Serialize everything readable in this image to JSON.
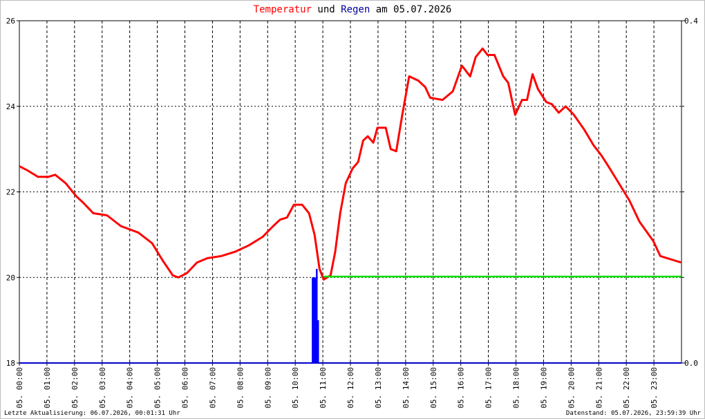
{
  "chart_data": {
    "type": "line",
    "title_connector": "und",
    "title_date": "am 05.07.2026",
    "xlim": [
      0,
      24
    ],
    "xticks": [
      {
        "value": 0,
        "label": "05. 00:00"
      },
      {
        "value": 1,
        "label": "05. 01:00"
      },
      {
        "value": 2,
        "label": "05. 02:00"
      },
      {
        "value": 3,
        "label": "05. 03:00"
      },
      {
        "value": 4,
        "label": "05. 04:00"
      },
      {
        "value": 5,
        "label": "05. 05:00"
      },
      {
        "value": 6,
        "label": "05. 06:00"
      },
      {
        "value": 7,
        "label": "05. 07:00"
      },
      {
        "value": 8,
        "label": "05. 08:00"
      },
      {
        "value": 9,
        "label": "05. 09:00"
      },
      {
        "value": 10,
        "label": "05. 10:00"
      },
      {
        "value": 11,
        "label": "05. 11:00"
      },
      {
        "value": 12,
        "label": "05. 12:00"
      },
      {
        "value": 13,
        "label": "05. 13:00"
      },
      {
        "value": 14,
        "label": "05. 14:00"
      },
      {
        "value": 15,
        "label": "05. 15:00"
      },
      {
        "value": 16,
        "label": "05. 16:00"
      },
      {
        "value": 17,
        "label": "05. 17:00"
      },
      {
        "value": 18,
        "label": "05. 18:00"
      },
      {
        "value": 19,
        "label": "05. 19:00"
      },
      {
        "value": 20,
        "label": "05. 20:00"
      },
      {
        "value": 21,
        "label": "05. 21:00"
      },
      {
        "value": 22,
        "label": "05. 22:00"
      },
      {
        "value": 23,
        "label": "05. 23:00"
      }
    ],
    "ylim": [
      18,
      26
    ],
    "yticks": [
      18,
      20,
      22,
      24,
      26
    ],
    "y2lim": [
      0,
      0.4
    ],
    "y2ticks": [
      {
        "value": 0,
        "label": "0.0"
      },
      {
        "value": 0.4,
        "label": "0.4"
      }
    ],
    "grid": true,
    "series": [
      {
        "name": "Temperatur",
        "color": "#ff0000",
        "type": "line",
        "x": [
          0,
          0.3,
          0.68,
          1.05,
          1.3,
          1.68,
          2.06,
          2.31,
          2.68,
          3.18,
          3.68,
          4.31,
          4.81,
          5.19,
          5.56,
          5.76,
          6.07,
          6.44,
          6.82,
          7.32,
          7.82,
          8.32,
          8.82,
          9.2,
          9.45,
          9.7,
          9.95,
          10.25,
          10.5,
          10.7,
          10.88,
          11.03,
          11.28,
          11.45,
          11.63,
          11.83,
          12.08,
          12.28,
          12.46,
          12.63,
          12.83,
          12.98,
          13.28,
          13.46,
          13.66,
          13.88,
          14.13,
          14.46,
          14.71,
          14.89,
          15.34,
          15.71,
          16.04,
          16.34,
          16.54,
          16.79,
          16.97,
          17.22,
          17.54,
          17.72,
          17.97,
          18.22,
          18.4,
          18.6,
          18.8,
          19.1,
          19.3,
          19.55,
          19.8,
          20.1,
          20.48,
          20.8,
          21.1,
          21.35,
          21.73,
          22.11,
          22.48,
          22.98,
          23.23,
          23.48,
          23.73,
          23.98
        ],
        "values": [
          22.6,
          22.5,
          22.35,
          22.35,
          22.4,
          22.2,
          21.9,
          21.75,
          21.5,
          21.45,
          21.2,
          21.05,
          20.8,
          20.4,
          20.05,
          20.0,
          20.1,
          20.35,
          20.45,
          20.5,
          20.6,
          20.75,
          20.95,
          21.2,
          21.35,
          21.4,
          21.7,
          21.7,
          21.5,
          21.0,
          20.2,
          19.95,
          20.05,
          20.6,
          21.5,
          22.2,
          22.55,
          22.7,
          23.2,
          23.3,
          23.15,
          23.5,
          23.5,
          23.0,
          22.95,
          23.8,
          24.7,
          24.6,
          24.45,
          24.2,
          24.15,
          24.35,
          24.95,
          24.7,
          25.15,
          25.35,
          25.2,
          25.2,
          24.7,
          24.55,
          23.8,
          24.15,
          24.15,
          24.75,
          24.4,
          24.1,
          24.05,
          23.85,
          24.0,
          23.8,
          23.45,
          23.1,
          22.85,
          22.6,
          22.2,
          21.8,
          21.3,
          20.85,
          20.5,
          20.45,
          20.4,
          20.35
        ]
      },
      {
        "color": "#00dd00",
        "type": "line",
        "x": [
          11.03,
          23.98
        ],
        "values": [
          20.02,
          20.02
        ]
      },
      {
        "name": "Regen",
        "color": "#0000ff",
        "type": "bar",
        "axis": "y2",
        "x": [
          10.63,
          10.68,
          10.73,
          10.78,
          10.83
        ],
        "values": [
          0.1,
          0.1,
          0.1,
          0.11,
          0.05
        ]
      }
    ],
    "footer_left": "Letzte Aktualisierung: 06.07.2026, 00:01:31 Uhr",
    "footer_right": "Datenstand: 05.07.2026, 23:59:39 Uhr"
  }
}
